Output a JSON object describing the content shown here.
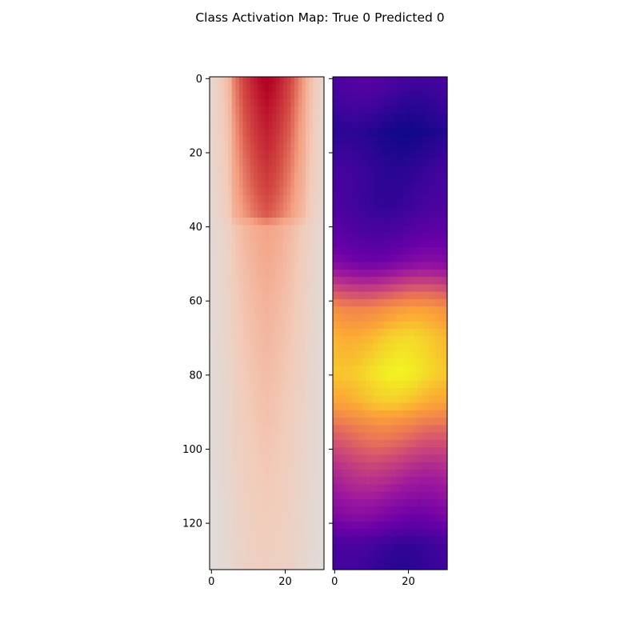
{
  "title": "Class Activation Map: True 0 Predicted 0",
  "chart_data": [
    {
      "type": "heatmap",
      "colormap": "Reds-like",
      "rows": 133,
      "cols": 31,
      "x_ticks": [
        0,
        20
      ],
      "y_ticks": [
        0,
        20,
        40,
        60,
        80,
        100,
        120
      ],
      "xlim": [
        -0.5,
        30.5
      ],
      "ylim": [
        132.5,
        -0.5
      ],
      "column_profile": [
        0.12,
        0.16,
        0.2,
        0.26,
        0.3,
        0.36,
        0.5,
        0.55,
        0.6,
        0.65,
        0.68,
        0.72,
        0.75,
        0.78,
        0.8,
        0.82,
        0.8,
        0.78,
        0.75,
        0.72,
        0.68,
        0.65,
        0.6,
        0.55,
        0.5,
        0.45,
        0.36,
        0.3,
        0.25,
        0.18,
        0.12
      ],
      "row_profile_anchors": [
        [
          0,
          1.0
        ],
        [
          10,
          0.92
        ],
        [
          20,
          0.85
        ],
        [
          30,
          0.78
        ],
        [
          38,
          0.7
        ],
        [
          40,
          0.52
        ],
        [
          60,
          0.44
        ],
        [
          80,
          0.38
        ],
        [
          100,
          0.33
        ],
        [
          120,
          0.28
        ],
        [
          132,
          0.25
        ]
      ]
    },
    {
      "type": "heatmap",
      "colormap": "plasma",
      "rows": 133,
      "cols": 31,
      "x_ticks": [
        0,
        20
      ],
      "y_ticks": [
        0,
        20,
        40,
        60,
        80,
        100,
        120
      ],
      "xlim": [
        -0.5,
        30.5
      ],
      "ylim": [
        132.5,
        -0.5
      ],
      "row_profile_anchors": [
        [
          0,
          0.2
        ],
        [
          8,
          0.12
        ],
        [
          15,
          0.05
        ],
        [
          25,
          0.12
        ],
        [
          35,
          0.15
        ],
        [
          42,
          0.22
        ],
        [
          50,
          0.35
        ],
        [
          57,
          0.6
        ],
        [
          63,
          0.8
        ],
        [
          70,
          0.9
        ],
        [
          80,
          0.95
        ],
        [
          88,
          0.88
        ],
        [
          95,
          0.72
        ],
        [
          105,
          0.55
        ],
        [
          112,
          0.45
        ],
        [
          120,
          0.32
        ],
        [
          126,
          0.15
        ],
        [
          132,
          0.12
        ]
      ]
    }
  ]
}
